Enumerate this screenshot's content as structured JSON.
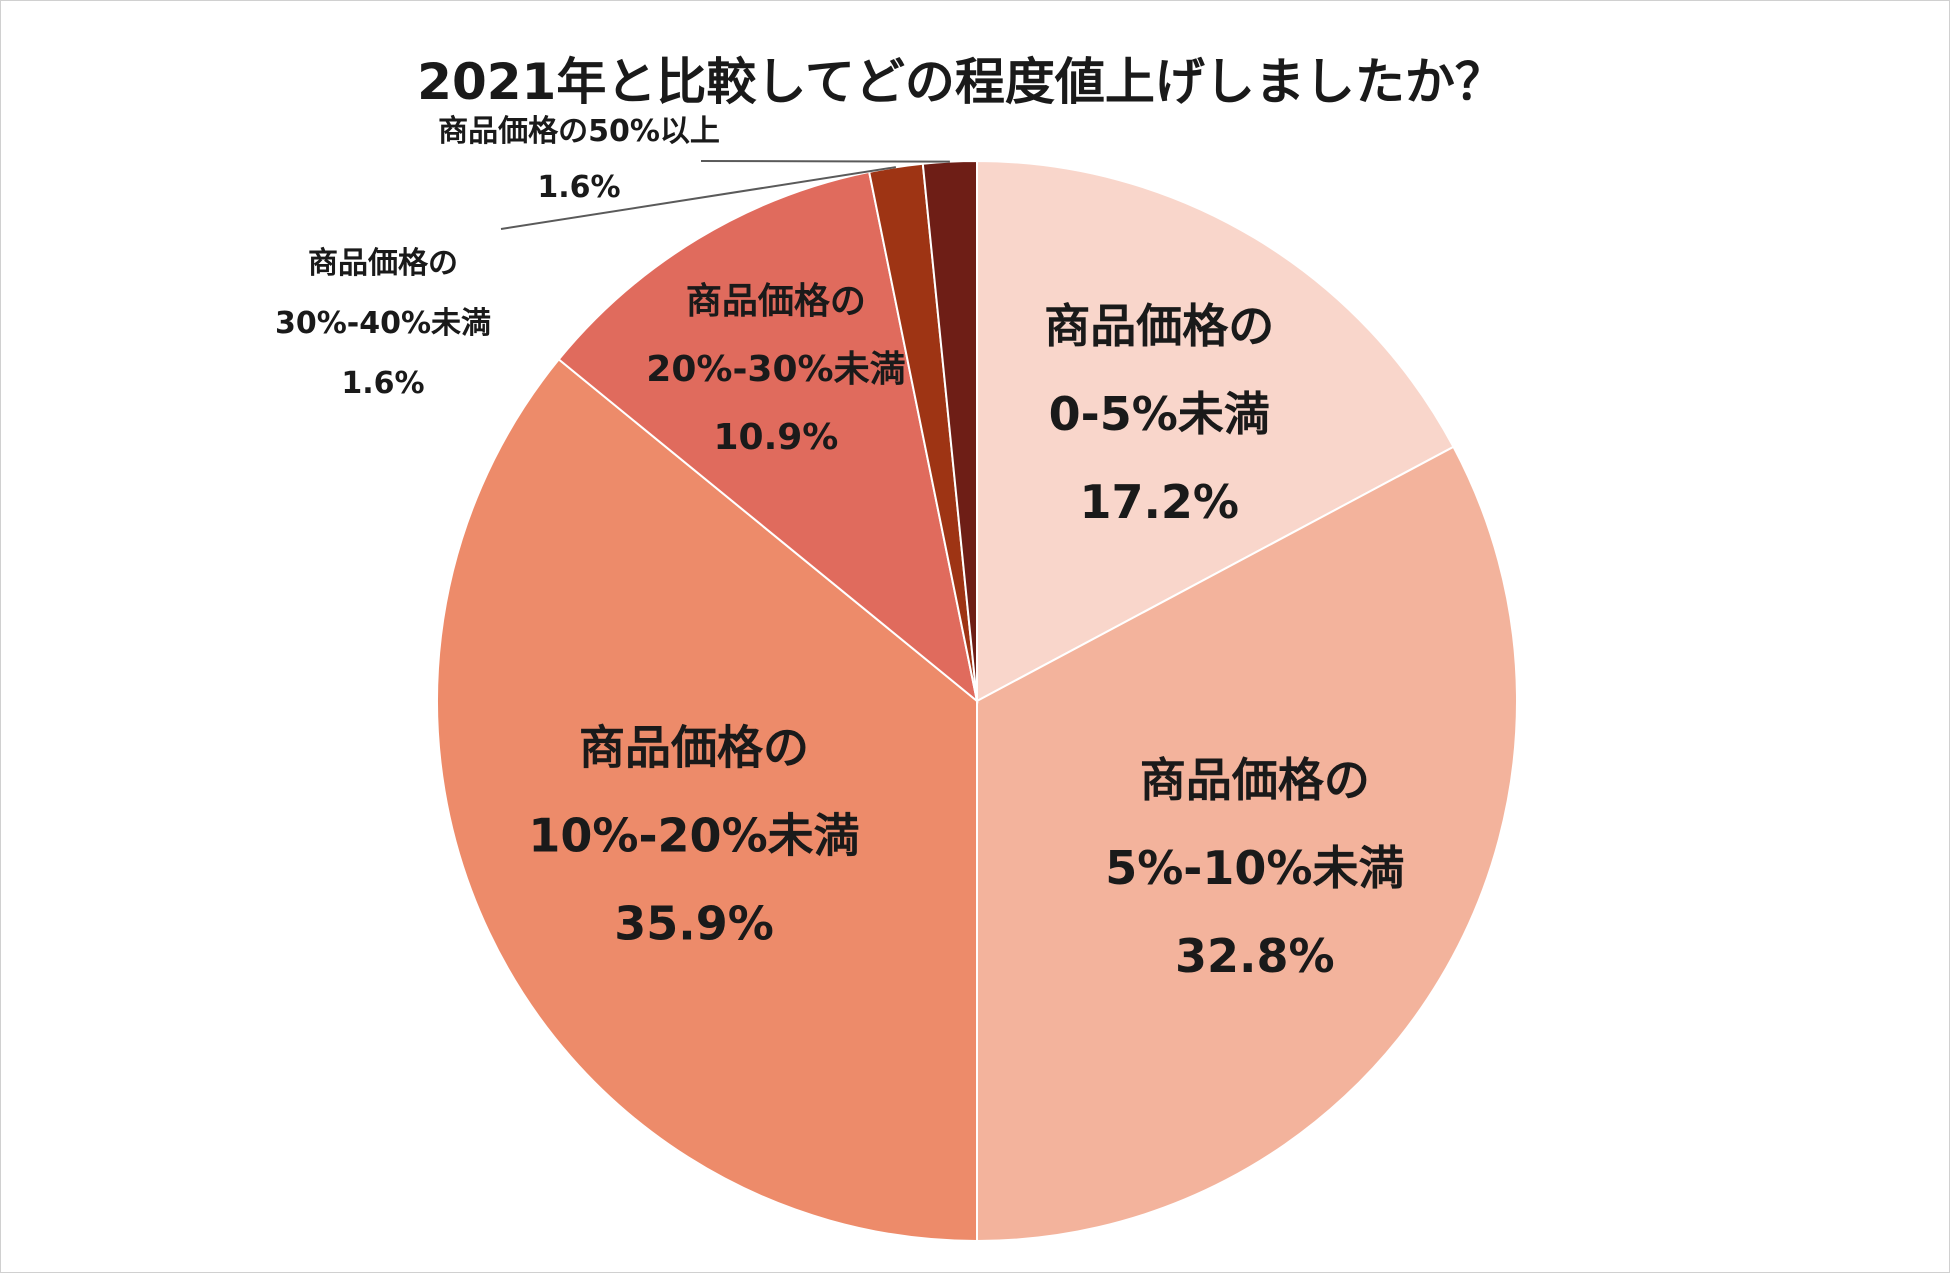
{
  "chart_data": {
    "type": "pie",
    "title": "2021年と比較してどの程度値上げしましたか？",
    "start_angle": "12 o'clock",
    "direction": "clockwise",
    "slices": [
      {
        "name": "商品価格の0-5%未満",
        "label_lines": [
          "商品価格の",
          "0-5%未満"
        ],
        "value": 17.2,
        "value_label": "17.2%",
        "color": "#F9D6CB",
        "label_position": "inside"
      },
      {
        "name": "商品価格の5%-10%未満",
        "label_lines": [
          "商品価格の",
          "5%-10%未満"
        ],
        "value": 32.8,
        "value_label": "32.8%",
        "color": "#F3B39C",
        "label_position": "inside"
      },
      {
        "name": "商品価格の10%-20%未満",
        "label_lines": [
          "商品価格の",
          "10%-20%未満"
        ],
        "value": 35.9,
        "value_label": "35.9%",
        "color": "#ED8B6A",
        "label_position": "inside"
      },
      {
        "name": "商品価格の20%-30%未満",
        "label_lines": [
          "商品価格の",
          "20%-30%未満"
        ],
        "value": 10.9,
        "value_label": "10.9%",
        "color": "#E06B5D",
        "label_position": "inside"
      },
      {
        "name": "商品価格の30%-40%未満",
        "label_lines": [
          "商品価格の",
          "30%-40%未満"
        ],
        "value": 1.6,
        "value_label": "1.6%",
        "color": "#9E3414",
        "label_position": "outside-leader"
      },
      {
        "name": "商品価格の50%以上",
        "label_lines": [
          "商品価格の50%以上"
        ],
        "value": 1.6,
        "value_label": "1.6%",
        "color": "#6E1E16",
        "label_position": "outside-leader"
      }
    ],
    "legend": "none",
    "slice_border_color": "#ffffff"
  }
}
